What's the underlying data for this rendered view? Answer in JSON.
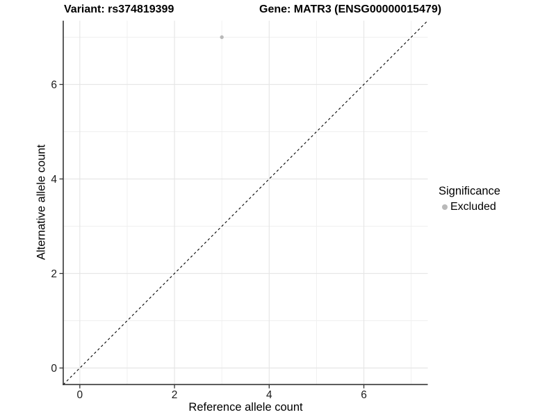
{
  "header": {
    "title_variant": "Variant: rs374819399",
    "title_gene": "Gene: MATR3 (ENSG00000015479)"
  },
  "legend": {
    "title": "Significance",
    "items": [
      {
        "label": "Excluded",
        "color": "#b9b9b9",
        "marker": "circle"
      }
    ]
  },
  "chart_data": {
    "type": "scatter",
    "title": "Variant: rs374819399   Gene: MATR3 (ENSG00000015479)",
    "xlabel": "Reference allele count",
    "ylabel": "Alternative allele count",
    "xlim": [
      -0.35,
      7.35
    ],
    "ylim": [
      -0.35,
      7.35
    ],
    "x_major_ticks": [
      0,
      2,
      4,
      6
    ],
    "x_minor_ticks": [
      1,
      3,
      5,
      7
    ],
    "y_major_ticks": [
      0,
      2,
      4,
      6
    ],
    "y_minor_ticks": [
      1,
      3,
      5,
      7
    ],
    "grid": "major+minor",
    "legend_position": "right",
    "series": [
      {
        "name": "Excluded",
        "color": "#b9b9b9",
        "points": [
          {
            "x": 3,
            "y": 7
          }
        ]
      }
    ],
    "reference_line": {
      "kind": "identity",
      "slope": 1,
      "intercept": 0,
      "style": "dashed",
      "color": "#000000"
    }
  },
  "colors": {
    "background": "#ffffff",
    "point": "#b9b9b9",
    "axis_line": "#333333",
    "tick_label": "#1a1a1a",
    "grid_major": "#e6e6e6",
    "grid_minor": "#efefef"
  }
}
